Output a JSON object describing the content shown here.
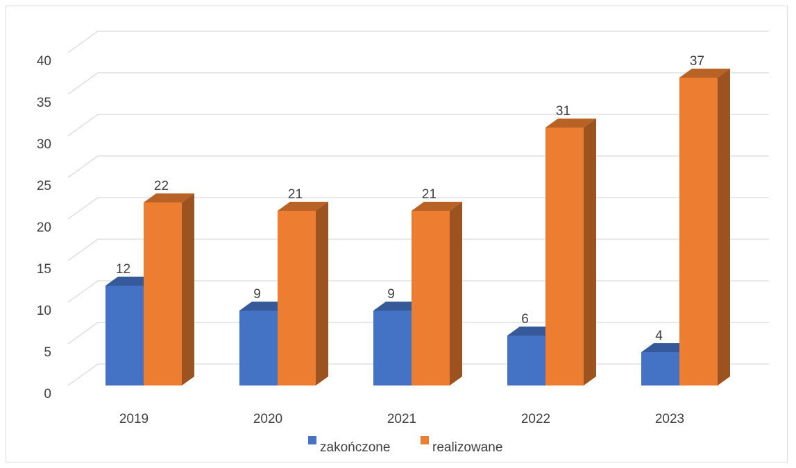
{
  "chart_data": {
    "type": "bar",
    "style": "3d-clustered-column",
    "categories": [
      "2019",
      "2020",
      "2021",
      "2022",
      "2023"
    ],
    "series": [
      {
        "name": "zakończone",
        "values": [
          12,
          9,
          9,
          6,
          4
        ],
        "color": "#4472C4"
      },
      {
        "name": "realizowane",
        "values": [
          22,
          21,
          21,
          31,
          37
        ],
        "color": "#ED7D31"
      }
    ],
    "title": "",
    "xlabel": "",
    "ylabel": "",
    "ylim": [
      0,
      40
    ],
    "yticks": [
      "0",
      "5",
      "10",
      "15",
      "20",
      "25",
      "30",
      "35",
      "40"
    ],
    "data_labels": true,
    "grid": true,
    "legend_position": "bottom"
  }
}
